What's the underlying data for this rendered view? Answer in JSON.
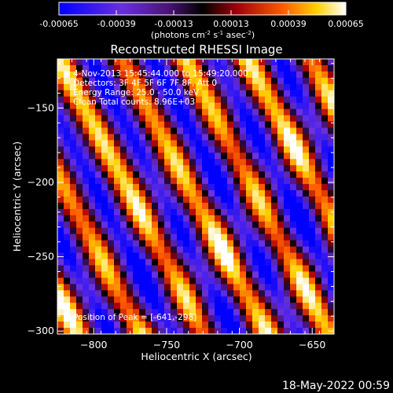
{
  "colorbar": {
    "ticks": [
      "-0.00065",
      "-0.00039",
      "-0.00013",
      "0.00013",
      "0.00039",
      "0.00065"
    ],
    "unit_main": "(photons cm",
    "unit_sup1": "-2",
    "unit_mid1": " s",
    "unit_sup2": "-1",
    "unit_mid2": " asec",
    "unit_sup3": "-2",
    "unit_end": ")"
  },
  "info": {
    "time": "4-Nov-2013 15:45:44.000 to 15:49:20.000",
    "detectors": "Detectors: 3F 4F 5F 6F 7F 8F, Att 0",
    "energy": "Energy Range: 25.0 - 50.0 keV",
    "clean": "Clean    Total counts: 8.96E+03",
    "peak": "Position of Peak = [-641,-298]"
  },
  "footer": {
    "date": "18-May-2022 00:59"
  },
  "chart_data": {
    "type": "heatmap",
    "title": "Reconstructed RHESSI Image",
    "xlabel": "Heliocentric X (arcsec)",
    "ylabel": "Heliocentric Y (arcsec)",
    "xlim": [
      -825,
      -635
    ],
    "ylim": [
      -302,
      -117
    ],
    "xticks": [
      -800,
      -750,
      -700,
      -650
    ],
    "yticks": [
      -150,
      -200,
      -250,
      -300
    ],
    "colorscale_range": [
      -0.00065,
      0.00065
    ],
    "colors": {
      "negative_low": "#0000ff",
      "negative_mid": "#7030c8",
      "neutral": "#000000",
      "positive_mid": "#e04010",
      "positive_high": "#ffffff"
    },
    "pattern": "diagonal fringes running from upper-left to lower-right",
    "peak_position": [
      -641,
      -298
    ]
  }
}
